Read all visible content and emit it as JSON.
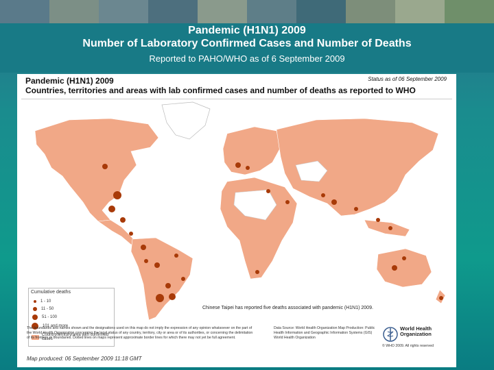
{
  "slide": {
    "title_line1": "Pandemic (H1N1) 2009",
    "title_line2": "Number of Laboratory Confirmed Cases and Number of Deaths",
    "title_line3": "Reported to PAHO/WHO as of 6 September 2009"
  },
  "map": {
    "heading1": "Pandemic (H1N1) 2009",
    "heading2": "Countries, territories and areas with lab confirmed cases and number of deaths as reported to WHO",
    "status": "Status as of 06 September 2009",
    "colors": {
      "affected": "#f1a887",
      "unaffected": "#ffffff",
      "water": "#ffffff",
      "death_marker": "#a83a08"
    },
    "legend": {
      "title": "Cumulative deaths",
      "items": [
        "1 - 10",
        "11 - 50",
        "51 - 100",
        "101 and more"
      ],
      "area_label": "Country/territory/area with confirmed cases"
    },
    "note": "Chinese Taipei has reported five deaths associated with pandemic (H1N1) 2009.",
    "disclaimer": "The boundaries and names shown and the designations used on this map do not imply the expression of any opinion whatsoever on the part of the World Health Organization concerning the legal status of any country, territory, city or area or of its authorities, or concerning the delimitation of its frontiers or boundaries. Dotted lines on maps represent approximate border lines for which there may not yet be full agreement.",
    "source": "Data Source: World Health Organization Map Production: Public Health Information and Geographic Information Systems (GIS) World Health Organization",
    "org_name_line1": "World Health",
    "org_name_line2": "Organization",
    "copyright": "© WHO 2009. All rights reserved",
    "produced": "Map produced: 06 September 2009 11:18 GMT"
  }
}
